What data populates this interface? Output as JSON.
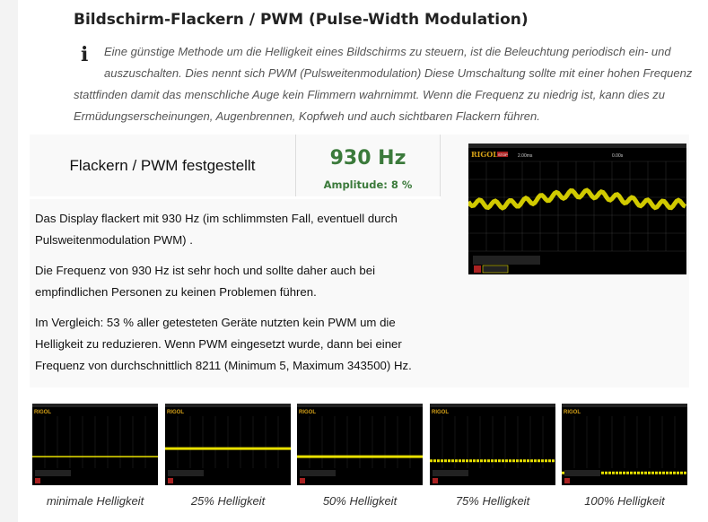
{
  "heading": "Bildschirm-Flackern / PWM (Pulse-Width Modulation)",
  "intro_icon": "info-icon",
  "intro": "Eine günstige Methode um die Helligkeit eines Bildschirms zu steuern, ist die Beleuchtung periodisch ein- und auszuschalten. Dies nennt sich PWM (Pulsweitenmodulation) Diese Umschaltung sollte mit einer hohen Frequenz stattfinden damit das menschliche Auge kein Flimmern wahrnimmt. Wenn die Frequenz zu niedrig ist, kann dies zu Ermüdungserscheinungen, Augenbrennen, Kopfweh und auch sichtbaren Flackern führen.",
  "result": {
    "label": "Flackern / PWM festgestellt",
    "frequency": "930 Hz",
    "amplitude": "Amplitude: 8 %"
  },
  "paragraphs": [
    "Das Display flackert mit 930 Hz (im schlimmsten Fall, eventuell durch Pulsweitenmodulation PWM) .",
    "Die Frequenz von 930 Hz ist sehr hoch und sollte daher auch bei empfindlichen Personen zu keinen Problemen führen.",
    "Im Vergleich: 53 % aller getesteten Geräte nutzten kein PWM um die Helligkeit zu reduzieren. Wenn PWM eingesetzt wurde, dann bei einer Frequenz von durchschnittlich 8211 (Minimum 5, Maximum 343500) Hz."
  ],
  "scope": {
    "brand": "RIGOL",
    "status": "STOP",
    "timebase": "2.00ms",
    "offset": "0.00s"
  },
  "thumbnails": [
    {
      "caption": "minimale Helligkeit",
      "level": 0.35
    },
    {
      "caption": "25% Helligkeit",
      "level": 0.45
    },
    {
      "caption": "50% Helligkeit",
      "level": 0.35
    },
    {
      "caption": "75% Helligkeit",
      "level": 0.3
    },
    {
      "caption": "100% Helligkeit",
      "level": 0.15
    }
  ],
  "colors": {
    "accent": "#3b7a3b",
    "trace": "#e8e000",
    "screen": "#000000"
  }
}
